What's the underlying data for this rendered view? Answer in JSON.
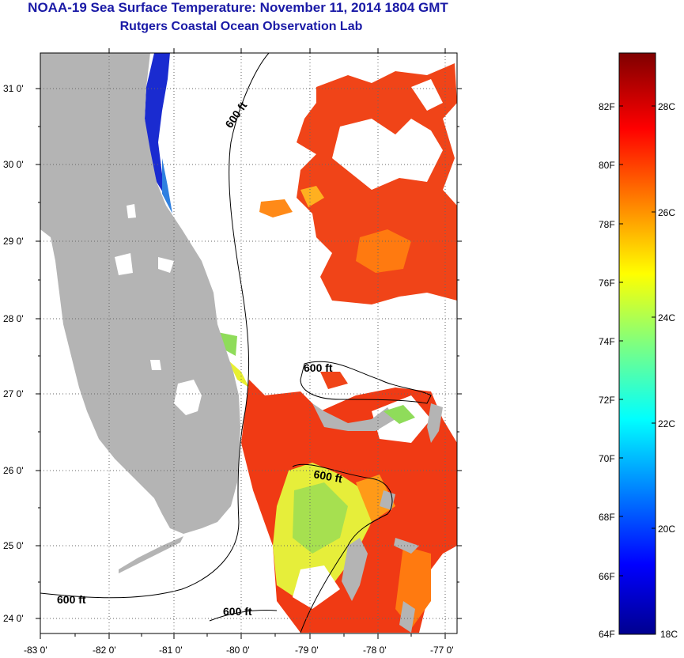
{
  "title": {
    "line1": "NOAA-19 Sea Surface Temperature:  November 11, 2014 1804 GMT",
    "line2": "Rutgers Coastal Ocean Observation Lab"
  },
  "map": {
    "lat_labels": [
      "31 0'",
      "30 0'",
      "29 0'",
      "28 0'",
      "27 0'",
      "26 0'",
      "25 0'",
      "24 0'"
    ],
    "lon_labels": [
      "-83 0'",
      "-82 0'",
      "-81 0'",
      "-80 0'",
      "-79 0'",
      "-78 0'",
      "-77 0'"
    ],
    "contour_label": "600 ft",
    "colors": {
      "land": "#b4b4b4",
      "cold": "#1a2bd0",
      "cyan": "#20c8d8",
      "green": "#8fdc5a",
      "yellow": "#e8f030",
      "orange": "#ff7a10",
      "red": "#f03a14"
    }
  },
  "colorbar": {
    "f_labels": [
      "82F",
      "80F",
      "78F",
      "76F",
      "74F",
      "72F",
      "70F",
      "68F",
      "66F",
      "64F"
    ],
    "c_labels": [
      "28C",
      "26C",
      "24C",
      "22C",
      "20C",
      "18C"
    ]
  }
}
